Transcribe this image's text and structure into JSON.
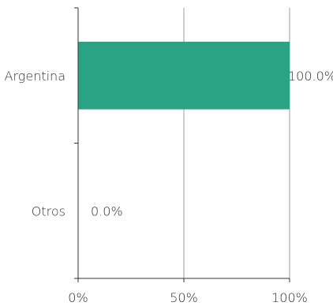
{
  "chart_data": {
    "type": "bar",
    "orientation": "horizontal",
    "categories": [
      "Argentina",
      "Otros"
    ],
    "values": [
      100.0,
      0.0
    ],
    "value_labels": [
      "100.0%",
      "0.0%"
    ],
    "x_ticks": [
      0,
      50,
      100
    ],
    "x_tick_labels": [
      "0%",
      "50%",
      "100%"
    ],
    "xlim": [
      0,
      100
    ],
    "title": "",
    "xlabel": "",
    "ylabel": "",
    "grid": "vertical",
    "bar_color": "#2aa384",
    "grid_color": "#9e9e9e",
    "axis_color": "#333333"
  }
}
